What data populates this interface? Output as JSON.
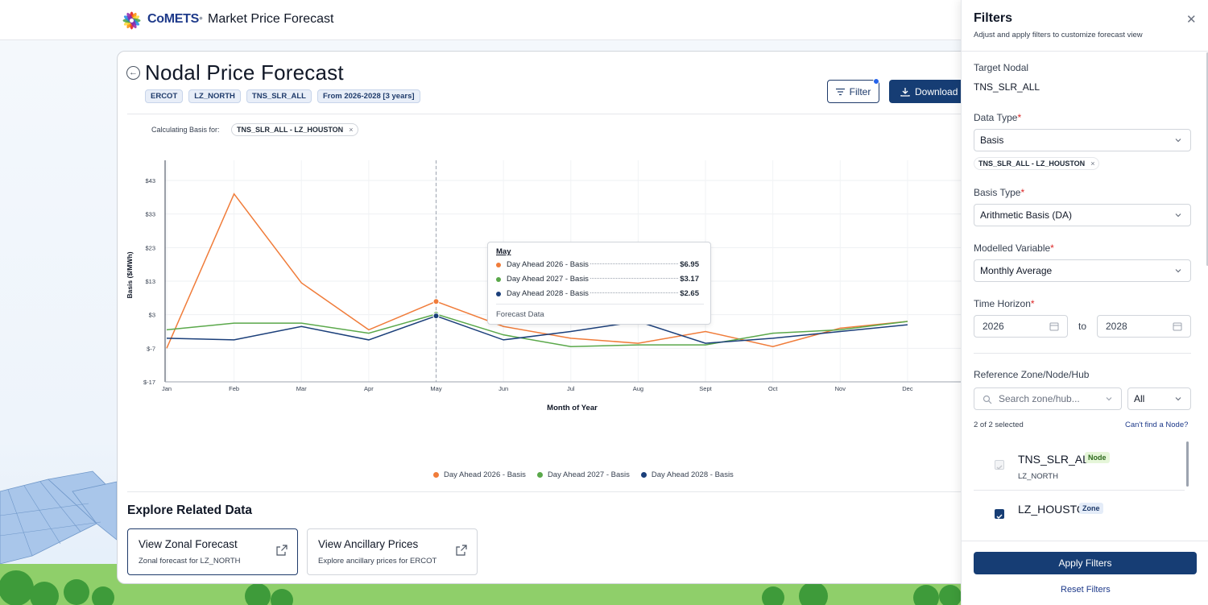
{
  "header": {
    "brand": "CoMETS",
    "separator": "•",
    "app_title": "Market Price Forecast"
  },
  "card": {
    "title": "Nodal Price Forecast",
    "tags": [
      "ERCOT",
      "LZ_NORTH",
      "TNS_SLR_ALL",
      "From 2026-2028 [3 years]"
    ],
    "filter_label": "Filter",
    "download_label": "Download D",
    "basis_label": "Calculating Basis for:",
    "basis_chip": "TNS_SLR_ALL - LZ_HOUSTON",
    "chip_remove": "×"
  },
  "chart_data": {
    "type": "line",
    "xlabel": "Month of Year",
    "ylabel": "Basis ($/MWh)",
    "categories": [
      "Jan",
      "Feb",
      "Mar",
      "Apr",
      "May",
      "Jun",
      "Jul",
      "Aug",
      "Sept",
      "Oct",
      "Nov",
      "Dec"
    ],
    "yticks": [
      -17,
      -7,
      3,
      13,
      23,
      33,
      43
    ],
    "ytick_labels": [
      "$-17",
      "$-7",
      "$3",
      "$13",
      "$23",
      "$33",
      "$43"
    ],
    "ylim": [
      -17,
      49
    ],
    "grid": true,
    "series": [
      {
        "name": "Day Ahead 2026 - Basis",
        "color": "#f07c3a",
        "values": [
          -7,
          39,
          12.5,
          -1.5,
          6.95,
          -0.5,
          -4,
          -5.5,
          -2,
          -6.5,
          -1,
          1
        ]
      },
      {
        "name": "Day Ahead 2027 - Basis",
        "color": "#5aa84a",
        "values": [
          -1.5,
          0.5,
          0.5,
          -2.5,
          3.17,
          -3,
          -6.5,
          -6,
          -6,
          -2.5,
          -1.5,
          1
        ]
      },
      {
        "name": "Day Ahead 2028 - Basis",
        "color": "#1b3f7a",
        "values": [
          -4,
          -4.5,
          -0.5,
          -4.5,
          2.65,
          -4.5,
          -2,
          1,
          -5.5,
          -4,
          -2,
          0
        ]
      }
    ],
    "legend_position": "bottom",
    "hover_category": "May"
  },
  "tooltip": {
    "title": "May",
    "rows": [
      {
        "label": "Day Ahead 2026 - Basis",
        "value": "$6.95",
        "color": "#f07c3a"
      },
      {
        "label": "Day Ahead 2027 - Basis",
        "value": "$3.17",
        "color": "#5aa84a"
      },
      {
        "label": "Day Ahead 2028 - Basis",
        "value": "$2.65",
        "color": "#1b3f7a"
      }
    ],
    "footer": "Forecast Data"
  },
  "related": {
    "title": "Explore Related Data",
    "cards": [
      {
        "title": "View Zonal Forecast",
        "subtitle": "Zonal forecast for LZ_NORTH"
      },
      {
        "title": "View Ancillary Prices",
        "subtitle": "Explore ancillary prices for ERCOT"
      }
    ]
  },
  "panel": {
    "title": "Filters",
    "subtitle": "Adjust and apply filters to customize forecast view",
    "target_label": "Target Nodal",
    "target_value": "TNS_SLR_ALL",
    "data_type_label": "Data Type",
    "data_type_value": "Basis",
    "basis_chip": "TNS_SLR_ALL - LZ_HOUSTON",
    "chip_remove": "×",
    "basis_type_label": "Basis Type",
    "basis_type_value": "Arithmetic Basis (DA)",
    "modelled_label": "Modelled Variable",
    "modelled_value": "Monthly Average",
    "horizon_label": "Time Horizon",
    "horizon_from": "2026",
    "horizon_to_label": "to",
    "horizon_to": "2028",
    "reference_label": "Reference Zone/Node/Hub",
    "search_placeholder": "Search zone/hub...",
    "filter_all": "All",
    "selected_count": "2 of 2 selected",
    "cant_find": "Can't find a Node?",
    "nodes": [
      {
        "name": "TNS_SLR_ALL",
        "badge": "Node",
        "sub": "LZ_NORTH",
        "checked": true,
        "disabled": true
      },
      {
        "name": "LZ_HOUSTON",
        "badge": "Zone",
        "sub": "",
        "checked": true,
        "disabled": false
      }
    ],
    "apply_label": "Apply Filters",
    "reset_label": "Reset Filters",
    "required_mark": "*"
  },
  "colors": {
    "primary": "#163d74",
    "accent": "#2563eb",
    "orange": "#f07c3a",
    "green": "#5aa84a",
    "navy": "#1b3f7a",
    "node_badge_bg": "#e6f6d9",
    "zone_badge_bg": "#e4ecf8"
  }
}
